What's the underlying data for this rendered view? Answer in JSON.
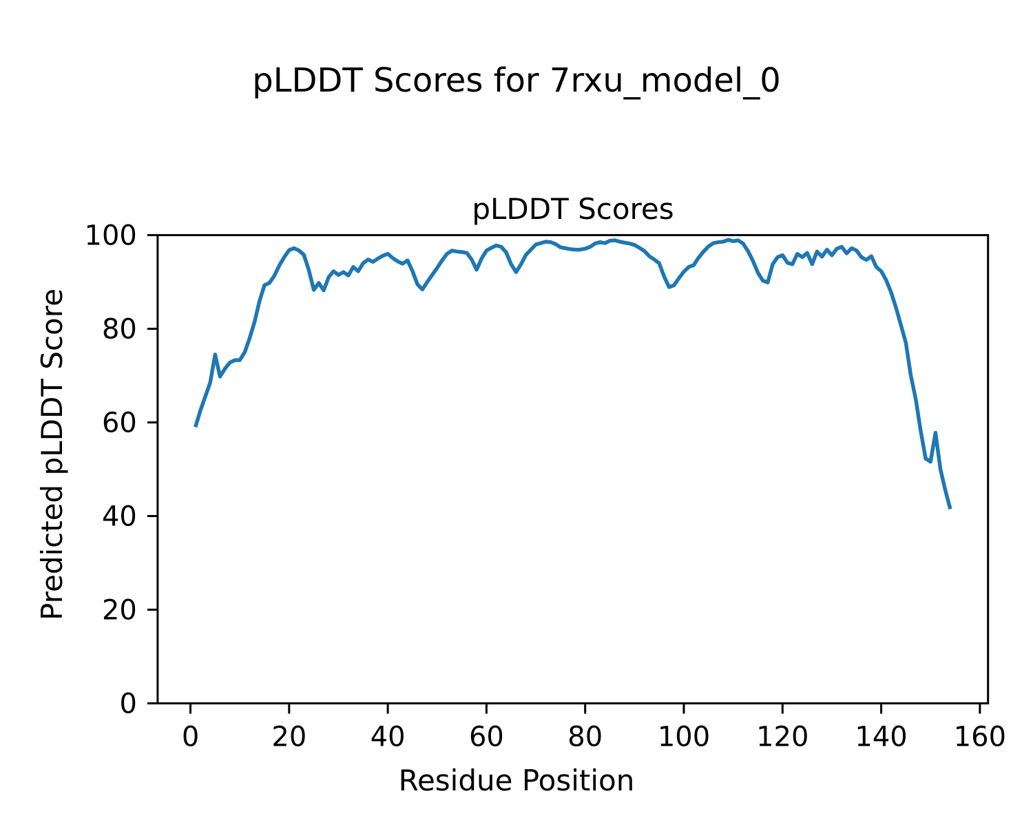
{
  "colors": {
    "line": "#1f77b4",
    "text": "#000000",
    "background": "#ffffff",
    "spine": "#000000"
  },
  "chart_data": {
    "type": "line",
    "suptitle": "pLDDT Scores for 7rxu_model_0",
    "title": "pLDDT Scores",
    "xlabel": "Residue Position",
    "ylabel": "Predicted pLDDT Score",
    "xlim": [
      -6.65,
      161.65
    ],
    "ylim": [
      0,
      100
    ],
    "xticks": [
      0,
      20,
      40,
      60,
      80,
      100,
      120,
      140,
      160
    ],
    "yticks": [
      0,
      20,
      40,
      60,
      80,
      100
    ],
    "grid": false,
    "legend": "none",
    "line_color": "#1f77b4",
    "line_width": 5.5,
    "series": [
      {
        "name": "pLDDT",
        "x": [
          1,
          2,
          3,
          4,
          5,
          6,
          7,
          8,
          9,
          10,
          11,
          12,
          13,
          14,
          15,
          16,
          17,
          18,
          19,
          20,
          21,
          22,
          23,
          24,
          25,
          26,
          27,
          28,
          29,
          30,
          31,
          32,
          33,
          34,
          35,
          36,
          37,
          38,
          39,
          40,
          41,
          42,
          43,
          44,
          45,
          46,
          47,
          48,
          49,
          50,
          51,
          52,
          53,
          54,
          55,
          56,
          57,
          58,
          59,
          60,
          61,
          62,
          63,
          64,
          65,
          66,
          67,
          68,
          69,
          70,
          71,
          72,
          73,
          74,
          75,
          76,
          77,
          78,
          79,
          80,
          81,
          82,
          83,
          84,
          85,
          86,
          87,
          88,
          89,
          90,
          91,
          92,
          93,
          94,
          95,
          96,
          97,
          98,
          99,
          100,
          101,
          102,
          103,
          104,
          105,
          106,
          107,
          108,
          109,
          110,
          111,
          112,
          113,
          114,
          115,
          116,
          117,
          118,
          119,
          120,
          121,
          122,
          123,
          124,
          125,
          126,
          127,
          128,
          129,
          130,
          131,
          132,
          133,
          134,
          135,
          136,
          137,
          138,
          139,
          140,
          141,
          142,
          143,
          144,
          145,
          146,
          147,
          148,
          149,
          150,
          151,
          152,
          153,
          154
        ],
        "values": [
          59.0,
          62.5,
          65.5,
          68.5,
          74.5,
          69.8,
          71.5,
          72.8,
          73.3,
          73.3,
          75.0,
          78.0,
          81.5,
          85.9,
          89.3,
          89.8,
          91.3,
          93.5,
          95.3,
          96.8,
          97.2,
          96.7,
          95.8,
          92.5,
          88.3,
          89.8,
          88.2,
          91.0,
          92.3,
          91.5,
          92.1,
          91.4,
          93.2,
          92.3,
          94.0,
          94.8,
          94.3,
          95.0,
          95.6,
          96.0,
          95.1,
          94.4,
          93.9,
          94.6,
          92.3,
          89.5,
          88.4,
          90.0,
          91.5,
          93.0,
          94.6,
          96.0,
          96.7,
          96.5,
          96.4,
          96.2,
          94.8,
          92.6,
          95.0,
          96.7,
          97.3,
          97.8,
          97.5,
          96.3,
          93.8,
          92.1,
          93.8,
          95.8,
          96.9,
          98.0,
          98.3,
          98.6,
          98.5,
          98.1,
          97.4,
          97.2,
          97.0,
          96.9,
          96.9,
          97.1,
          97.5,
          98.2,
          98.5,
          98.3,
          98.8,
          98.9,
          98.6,
          98.4,
          98.2,
          97.9,
          97.3,
          96.6,
          95.5,
          94.8,
          94.0,
          91.2,
          88.9,
          89.3,
          90.8,
          92.2,
          93.2,
          93.6,
          95.2,
          96.5,
          97.6,
          98.3,
          98.5,
          98.6,
          99.0,
          98.7,
          98.9,
          98.2,
          96.6,
          94.5,
          92.0,
          90.3,
          89.9,
          93.8,
          95.3,
          95.7,
          94.1,
          93.8,
          96.0,
          95.3,
          96.2,
          93.8,
          96.5,
          95.4,
          96.9,
          95.7,
          97.1,
          97.5,
          96.1,
          97.2,
          96.7,
          95.3,
          94.7,
          95.5,
          93.2,
          92.3,
          90.4,
          87.8,
          84.5,
          80.8,
          77.0,
          70.0,
          65.0,
          58.2,
          52.3,
          51.6,
          57.8,
          50.0,
          45.5,
          41.5
        ]
      }
    ]
  }
}
